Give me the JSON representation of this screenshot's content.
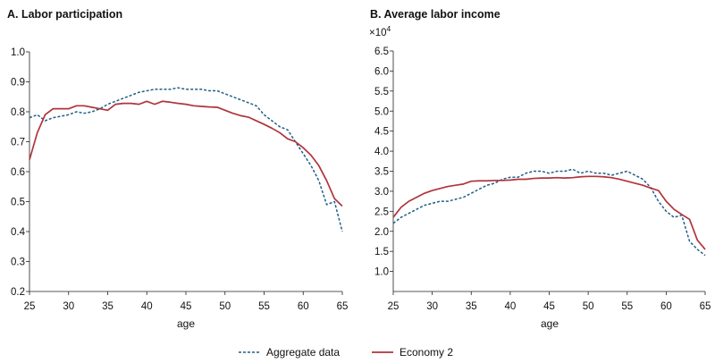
{
  "colors": {
    "aggregate": "#1f5f86",
    "economy": "#b0343c"
  },
  "legend": {
    "aggregate_label": "Aggregate data",
    "economy_label": "Economy 2"
  },
  "chart_data": [
    {
      "type": "line",
      "title": "A. Labor participation",
      "xlabel": "age",
      "ylabel": "",
      "exponent_label": "",
      "xlim": [
        25,
        65
      ],
      "ylim": [
        0.2,
        1.0
      ],
      "xticks": [
        25,
        30,
        35,
        40,
        45,
        50,
        55,
        60,
        65
      ],
      "yticks": [
        0.2,
        0.3,
        0.4,
        0.5,
        0.6,
        0.7,
        0.8,
        0.9,
        1.0
      ],
      "ytick_labels": [
        "0.2",
        "0.3",
        "0.4",
        "0.5",
        "0.6",
        "0.7",
        "0.8",
        "0.9",
        "1.0"
      ],
      "x": [
        25,
        26,
        27,
        28,
        29,
        30,
        31,
        32,
        33,
        34,
        35,
        36,
        37,
        38,
        39,
        40,
        41,
        42,
        43,
        44,
        45,
        46,
        47,
        48,
        49,
        50,
        51,
        52,
        53,
        54,
        55,
        56,
        57,
        58,
        59,
        60,
        61,
        62,
        63,
        64,
        65
      ],
      "series": [
        {
          "name": "Aggregate data",
          "style": "dashed",
          "values": [
            0.78,
            0.79,
            0.77,
            0.78,
            0.785,
            0.79,
            0.8,
            0.795,
            0.8,
            0.81,
            0.825,
            0.835,
            0.845,
            0.855,
            0.865,
            0.87,
            0.875,
            0.875,
            0.875,
            0.88,
            0.875,
            0.875,
            0.875,
            0.87,
            0.87,
            0.86,
            0.85,
            0.84,
            0.83,
            0.82,
            0.79,
            0.77,
            0.75,
            0.74,
            0.7,
            0.66,
            0.62,
            0.57,
            0.49,
            0.5,
            0.4
          ]
        },
        {
          "name": "Economy 2",
          "style": "solid",
          "values": [
            0.64,
            0.73,
            0.79,
            0.81,
            0.81,
            0.81,
            0.82,
            0.82,
            0.815,
            0.81,
            0.805,
            0.825,
            0.828,
            0.828,
            0.825,
            0.835,
            0.825,
            0.835,
            0.832,
            0.828,
            0.825,
            0.82,
            0.818,
            0.816,
            0.815,
            0.805,
            0.795,
            0.787,
            0.782,
            0.77,
            0.758,
            0.745,
            0.73,
            0.71,
            0.7,
            0.68,
            0.655,
            0.62,
            0.57,
            0.51,
            0.485
          ]
        }
      ]
    },
    {
      "type": "line",
      "title": "B. Average labor income",
      "xlabel": "age",
      "ylabel": "",
      "exponent_label": "×10",
      "exponent_power": "4",
      "xlim": [
        25,
        65
      ],
      "ylim": [
        0.5,
        6.5
      ],
      "xticks": [
        25,
        30,
        35,
        40,
        45,
        50,
        55,
        60,
        65
      ],
      "yticks": [
        1.0,
        1.5,
        2.0,
        2.5,
        3.0,
        3.5,
        4.0,
        4.5,
        5.0,
        5.5,
        6.0,
        6.5
      ],
      "ytick_labels": [
        "1.0",
        "1.5",
        "2.0",
        "2.5",
        "3.0",
        "3.5",
        "4.0",
        "4.5",
        "5.0",
        "5.5",
        "6.0",
        "6.5"
      ],
      "x": [
        25,
        26,
        27,
        28,
        29,
        30,
        31,
        32,
        33,
        34,
        35,
        36,
        37,
        38,
        39,
        40,
        41,
        42,
        43,
        44,
        45,
        46,
        47,
        48,
        49,
        50,
        51,
        52,
        53,
        54,
        55,
        56,
        57,
        58,
        59,
        60,
        61,
        62,
        63,
        64,
        65
      ],
      "series": [
        {
          "name": "Aggregate data",
          "style": "dashed",
          "values": [
            2.2,
            2.35,
            2.45,
            2.55,
            2.65,
            2.7,
            2.75,
            2.75,
            2.8,
            2.85,
            2.95,
            3.05,
            3.15,
            3.2,
            3.3,
            3.35,
            3.35,
            3.45,
            3.5,
            3.5,
            3.45,
            3.5,
            3.5,
            3.55,
            3.45,
            3.5,
            3.45,
            3.45,
            3.4,
            3.45,
            3.5,
            3.4,
            3.3,
            3.1,
            2.75,
            2.5,
            2.35,
            2.4,
            1.75,
            1.55,
            1.4
          ]
        },
        {
          "name": "Economy 2",
          "style": "solid",
          "values": [
            2.35,
            2.6,
            2.75,
            2.85,
            2.95,
            3.02,
            3.07,
            3.12,
            3.15,
            3.18,
            3.25,
            3.26,
            3.26,
            3.27,
            3.27,
            3.28,
            3.3,
            3.3,
            3.32,
            3.33,
            3.33,
            3.34,
            3.33,
            3.34,
            3.36,
            3.37,
            3.37,
            3.36,
            3.34,
            3.3,
            3.25,
            3.2,
            3.15,
            3.08,
            3.02,
            2.75,
            2.55,
            2.42,
            2.3,
            1.78,
            1.55
          ]
        }
      ]
    }
  ]
}
